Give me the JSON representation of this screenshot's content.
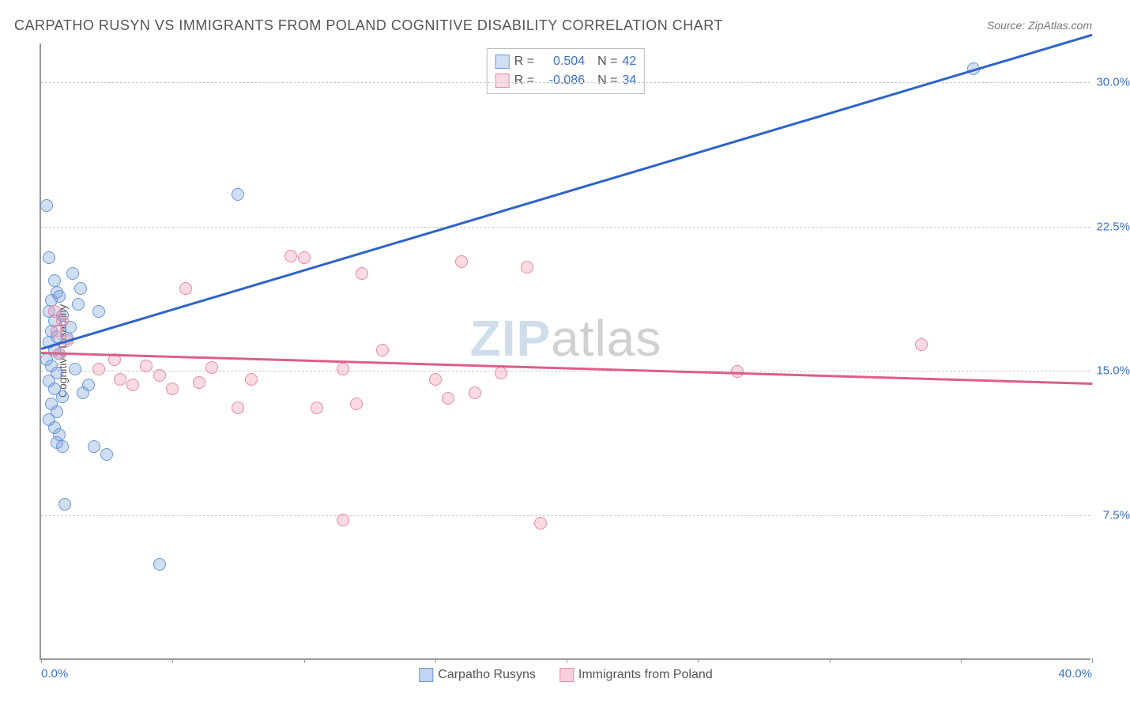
{
  "title": "CARPATHO RUSYN VS IMMIGRANTS FROM POLAND COGNITIVE DISABILITY CORRELATION CHART",
  "source": "Source: ZipAtlas.com",
  "y_axis_label": "Cognitive Disability",
  "watermark": {
    "part1": "ZIP",
    "part2": "atlas"
  },
  "chart": {
    "type": "scatter",
    "xlim": [
      0,
      40
    ],
    "ylim": [
      0,
      32
    ],
    "x_ticks": [
      0,
      10,
      20,
      30,
      40
    ],
    "x_tick_labels": [
      "0.0%",
      "",
      "",
      "",
      "40.0%"
    ],
    "x_minor_ticks": [
      5,
      15,
      25,
      35
    ],
    "y_ticks": [
      7.5,
      15.0,
      22.5,
      30.0
    ],
    "y_tick_labels": [
      "7.5%",
      "15.0%",
      "22.5%",
      "30.0%"
    ],
    "grid_color": "#cccccc",
    "axis_color": "#999999",
    "background_color": "#ffffff",
    "value_color": "#3b6fc9",
    "series": [
      {
        "name": "Carpatho Rusyns",
        "fill": "rgba(120,160,220,0.35)",
        "stroke": "#6a96d8",
        "line_color": "#2e63c8",
        "r_value": "0.504",
        "n_value": "42",
        "marker_radius": 8,
        "trend": {
          "x1": 0,
          "y1": 16.2,
          "x2": 40,
          "y2": 32.5
        },
        "points": [
          [
            0.2,
            23.5
          ],
          [
            0.3,
            20.8
          ],
          [
            0.5,
            19.6
          ],
          [
            0.6,
            19.0
          ],
          [
            0.4,
            18.6
          ],
          [
            0.7,
            18.8
          ],
          [
            0.3,
            18.0
          ],
          [
            0.5,
            17.5
          ],
          [
            0.8,
            17.8
          ],
          [
            0.4,
            17.0
          ],
          [
            0.6,
            16.7
          ],
          [
            0.3,
            16.4
          ],
          [
            0.5,
            16.0
          ],
          [
            0.7,
            15.8
          ],
          [
            0.2,
            15.5
          ],
          [
            0.4,
            15.2
          ],
          [
            0.6,
            14.8
          ],
          [
            0.3,
            14.4
          ],
          [
            0.5,
            14.0
          ],
          [
            0.8,
            13.6
          ],
          [
            0.4,
            13.2
          ],
          [
            0.6,
            12.8
          ],
          [
            0.3,
            12.4
          ],
          [
            0.5,
            12.0
          ],
          [
            0.7,
            11.6
          ],
          [
            0.6,
            11.2
          ],
          [
            0.8,
            11.0
          ],
          [
            1.2,
            20.0
          ],
          [
            1.5,
            19.2
          ],
          [
            1.8,
            14.2
          ],
          [
            2.0,
            11.0
          ],
          [
            2.2,
            18.0
          ],
          [
            2.5,
            10.6
          ],
          [
            0.9,
            8.0
          ],
          [
            4.5,
            4.9
          ],
          [
            7.5,
            24.1
          ],
          [
            35.5,
            30.6
          ],
          [
            1.0,
            16.6
          ],
          [
            1.3,
            15.0
          ],
          [
            1.6,
            13.8
          ],
          [
            1.1,
            17.2
          ],
          [
            1.4,
            18.4
          ]
        ]
      },
      {
        "name": "Immigrants from Poland",
        "fill": "rgba(240,150,175,0.35)",
        "stroke": "#e68aa6",
        "line_color": "#dc5e8a",
        "r_value": "-0.086",
        "n_value": "34",
        "marker_radius": 8,
        "trend": {
          "x1": 0,
          "y1": 16.0,
          "x2": 40,
          "y2": 14.4
        },
        "points": [
          [
            0.5,
            18.0
          ],
          [
            0.8,
            17.5
          ],
          [
            0.6,
            17.0
          ],
          [
            1.0,
            16.5
          ],
          [
            0.7,
            15.8
          ],
          [
            2.2,
            15.0
          ],
          [
            3.0,
            14.5
          ],
          [
            3.5,
            14.2
          ],
          [
            4.5,
            14.7
          ],
          [
            5.0,
            14.0
          ],
          [
            5.5,
            19.2
          ],
          [
            6.5,
            15.1
          ],
          [
            7.5,
            13.0
          ],
          [
            8.0,
            14.5
          ],
          [
            9.5,
            20.9
          ],
          [
            10.0,
            20.8
          ],
          [
            10.5,
            13.0
          ],
          [
            11.5,
            15.0
          ],
          [
            12.2,
            20.0
          ],
          [
            12.0,
            13.2
          ],
          [
            13.0,
            16.0
          ],
          [
            15.0,
            14.5
          ],
          [
            15.5,
            13.5
          ],
          [
            16.0,
            20.6
          ],
          [
            16.5,
            13.8
          ],
          [
            17.5,
            14.8
          ],
          [
            18.5,
            20.3
          ],
          [
            26.5,
            14.9
          ],
          [
            33.5,
            16.3
          ],
          [
            11.5,
            7.2
          ],
          [
            19.0,
            7.0
          ],
          [
            4.0,
            15.2
          ],
          [
            6.0,
            14.3
          ],
          [
            2.8,
            15.5
          ]
        ]
      }
    ]
  },
  "legend": {
    "items": [
      {
        "label": "Carpatho Rusyns",
        "fill": "rgba(120,160,220,0.45)",
        "stroke": "#6a96d8"
      },
      {
        "label": "Immigrants from Poland",
        "fill": "rgba(240,150,175,0.45)",
        "stroke": "#e68aa6"
      }
    ]
  }
}
